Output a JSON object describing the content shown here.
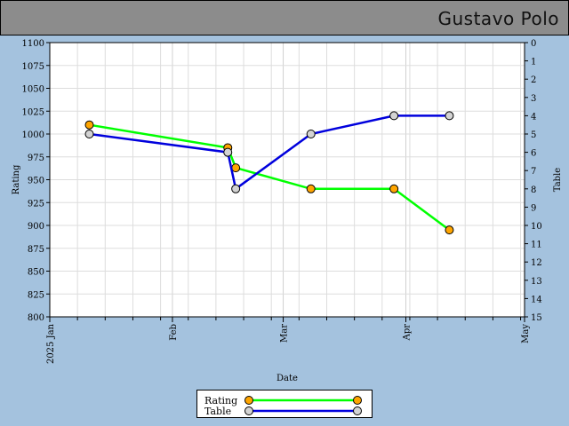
{
  "title": "Gustavo Polo",
  "chart_data": {
    "type": "line",
    "xlabel": "Date",
    "ylabel_left": "Rating",
    "ylabel_right": "Table",
    "x_ticks": [
      "2025 Jan",
      "Feb",
      "Mar",
      "Apr",
      "May"
    ],
    "x_tick_dates": [
      "2025-01-01",
      "2025-02-01",
      "2025-03-01",
      "2025-04-01",
      "2025-05-01"
    ],
    "left_axis": {
      "range": [
        800,
        1100
      ],
      "ticks": [
        "800",
        "825",
        "850",
        "875",
        "900",
        "925",
        "950",
        "975",
        "1000",
        "1025",
        "1050",
        "1075",
        "1100"
      ]
    },
    "right_axis": {
      "range": [
        0,
        15
      ],
      "inverted": true,
      "ticks": [
        "0",
        "1",
        "2",
        "3",
        "4",
        "5",
        "6",
        "7",
        "8",
        "9",
        "10",
        "11",
        "12",
        "13",
        "14",
        "15"
      ]
    },
    "grid": true,
    "legend_position": "bottom-center",
    "series": [
      {
        "name": "Rating",
        "axis": "left",
        "color": "#00ff00",
        "marker_color": "#ffa500",
        "points": [
          {
            "x": "2025-01-11",
            "y": 1010
          },
          {
            "x": "2025-02-15",
            "y": 985
          },
          {
            "x": "2025-02-17",
            "y": 963
          },
          {
            "x": "2025-03-08",
            "y": 940
          },
          {
            "x": "2025-03-29",
            "y": 940
          },
          {
            "x": "2025-04-12",
            "y": 895
          }
        ]
      },
      {
        "name": "Table",
        "axis": "right",
        "color": "#0000dd",
        "marker_color": "#d3d3d3",
        "points": [
          {
            "x": "2025-01-11",
            "y": 5
          },
          {
            "x": "2025-02-15",
            "y": 6
          },
          {
            "x": "2025-02-17",
            "y": 8
          },
          {
            "x": "2025-03-08",
            "y": 5
          },
          {
            "x": "2025-03-29",
            "y": 4
          },
          {
            "x": "2025-04-12",
            "y": 4
          }
        ]
      }
    ]
  }
}
